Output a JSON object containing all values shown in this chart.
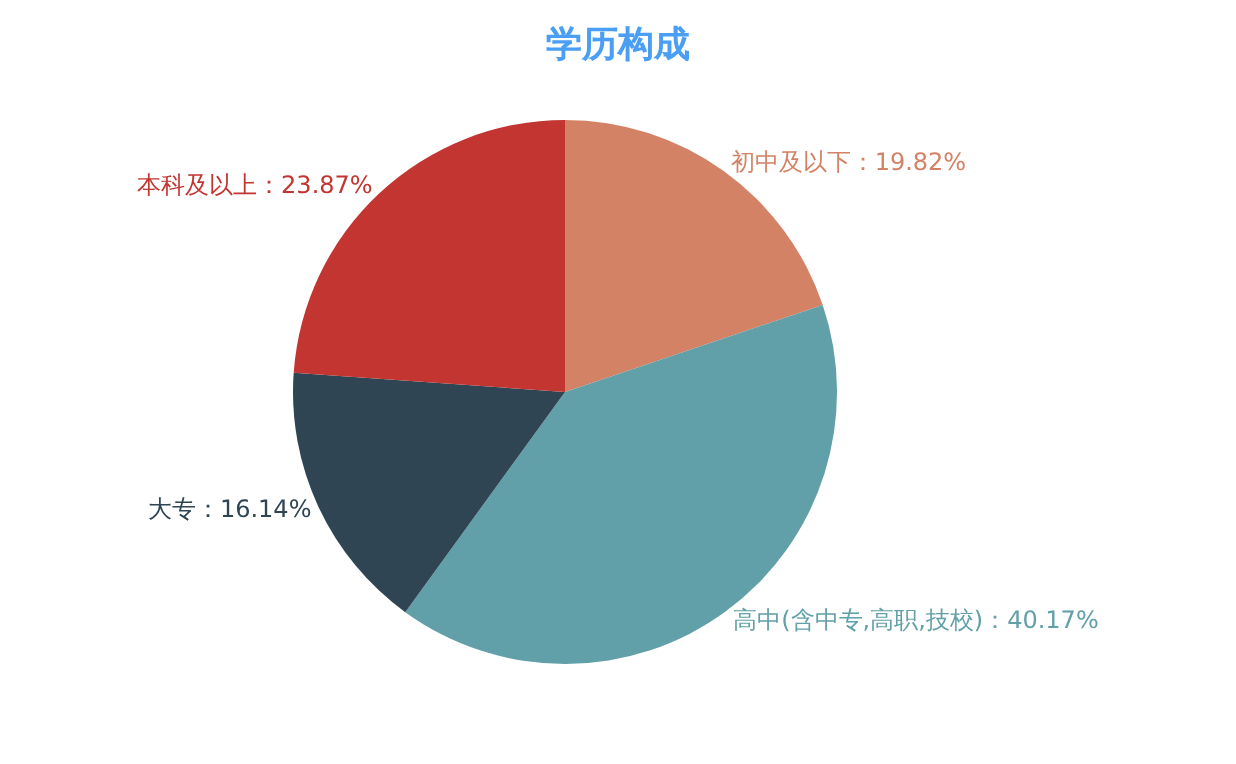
{
  "chart_data": {
    "type": "pie",
    "title": "学历构成",
    "categories": [
      "初中及以下",
      "高中(含中专,高职,技校)",
      "大专",
      "本科及以上"
    ],
    "value_labels": [
      "19.82%",
      "40.17%",
      "16.14%",
      "23.87%"
    ],
    "values": [
      19.82,
      40.17,
      16.14,
      23.87
    ],
    "colors": [
      "#d48265",
      "#61a0a8",
      "#2f4554",
      "#c23531"
    ],
    "legend": false
  }
}
